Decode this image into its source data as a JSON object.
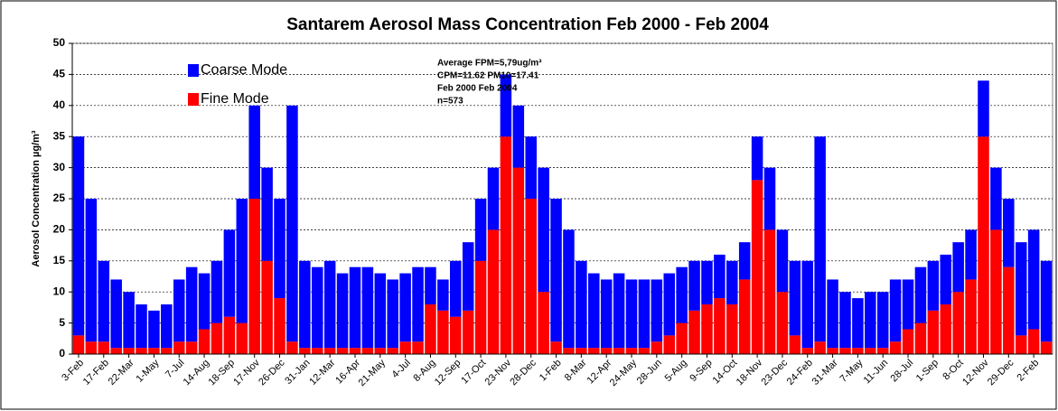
{
  "chart_data": {
    "type": "stacked_bar",
    "title": "Santarem Aerosol Mass Concentration Feb 2000 - Feb 2004",
    "y_label": "Aerosol Concentration   µg/m³",
    "annotation": [
      "Average FPM=5,79ug/m³",
      "CPM=11.62  PM10=17.41",
      "Feb 2000   Feb   2004",
      "n=573"
    ],
    "categories": [
      "3-Feb",
      null,
      "17-Feb",
      null,
      "22-Mar",
      null,
      "1-May",
      null,
      "7-Jul",
      null,
      "14-Aug",
      null,
      "18-Sep",
      null,
      "17-Nov",
      null,
      "26-Dec",
      null,
      "31-Jan",
      null,
      "12-Mar",
      null,
      "16-Apr",
      null,
      "21-May",
      null,
      "4-Jul",
      null,
      "8-Aug",
      null,
      "12-Sep",
      null,
      "17-Oct",
      null,
      "23-Nov",
      null,
      "28-Dec",
      null,
      "1-Feb",
      null,
      "8-Mar",
      null,
      "12-Apr",
      null,
      "24-May",
      null,
      "28-Jun",
      null,
      "5-Aug",
      null,
      "9-Sep",
      null,
      "14-Oct",
      null,
      "18-Nov",
      null,
      "23-Dec",
      null,
      "24-Feb",
      null,
      "31-Mar",
      null,
      "7-May",
      null,
      "11-Jun",
      null,
      "28-Jul",
      null,
      "1-Sep",
      null,
      "8-Oct",
      null,
      "12-Nov",
      null,
      "29-Dec",
      null,
      "2-Feb",
      null
    ],
    "series": [
      {
        "name": "Fine Mode",
        "color": "#ff0000",
        "values": [
          3,
          2,
          2,
          1,
          1,
          1,
          1,
          1,
          2,
          2,
          4,
          5,
          6,
          5,
          25,
          15,
          9,
          2,
          1,
          1,
          1,
          1,
          1,
          1,
          1,
          1,
          2,
          2,
          8,
          7,
          6,
          7,
          15,
          20,
          35,
          30,
          25,
          10,
          2,
          1,
          1,
          1,
          1,
          1,
          1,
          1,
          2,
          3,
          5,
          7,
          8,
          9,
          8,
          12,
          28,
          20,
          10,
          3,
          1,
          2,
          1,
          1,
          1,
          1,
          1,
          2,
          4,
          5,
          7,
          8,
          10,
          12,
          35,
          20,
          14,
          3,
          4,
          2
        ]
      },
      {
        "name": "Coarse Mode",
        "color": "#0000ff",
        "values": [
          32,
          23,
          13,
          11,
          9,
          7,
          6,
          7,
          10,
          12,
          9,
          10,
          14,
          20,
          15,
          15,
          16,
          38,
          14,
          13,
          14,
          12,
          13,
          13,
          12,
          11,
          11,
          12,
          6,
          5,
          9,
          11,
          10,
          10,
          10,
          10,
          10,
          20,
          23,
          19,
          14,
          12,
          11,
          12,
          11,
          11,
          10,
          10,
          9,
          8,
          7,
          7,
          7,
          6,
          7,
          10,
          10,
          12,
          14,
          33,
          11,
          9,
          8,
          9,
          9,
          10,
          8,
          9,
          8,
          8,
          8,
          8,
          9,
          10,
          11,
          15,
          16,
          13
        ]
      }
    ],
    "ylim": [
      0,
      50
    ],
    "yticks": [
      0,
      5,
      10,
      15,
      20,
      25,
      30,
      35,
      40,
      45,
      50
    ],
    "grid": true
  }
}
